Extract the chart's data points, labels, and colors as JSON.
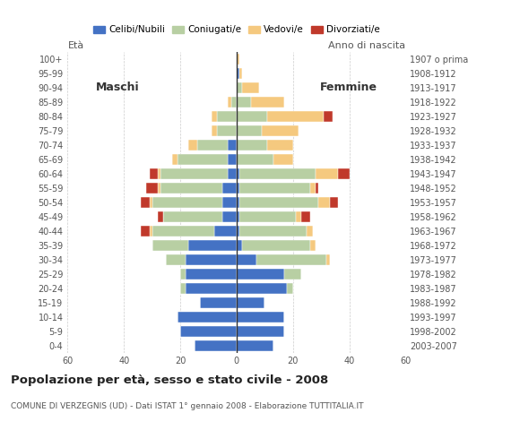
{
  "age_groups": [
    "0-4",
    "5-9",
    "10-14",
    "15-19",
    "20-24",
    "25-29",
    "30-34",
    "35-39",
    "40-44",
    "45-49",
    "50-54",
    "55-59",
    "60-64",
    "65-69",
    "70-74",
    "75-79",
    "80-84",
    "85-89",
    "90-94",
    "95-99",
    "100+"
  ],
  "birth_years": [
    "2003-2007",
    "1998-2002",
    "1993-1997",
    "1988-1992",
    "1983-1987",
    "1978-1982",
    "1973-1977",
    "1968-1972",
    "1963-1967",
    "1958-1962",
    "1953-1957",
    "1948-1952",
    "1943-1947",
    "1938-1942",
    "1933-1937",
    "1928-1932",
    "1923-1927",
    "1918-1922",
    "1913-1917",
    "1908-1912",
    "1907 o prima"
  ],
  "colors": {
    "celibe": "#4472c4",
    "coniugato": "#b8cfa3",
    "vedovo": "#f5c97f",
    "divorziato": "#c0392b"
  },
  "males": {
    "celibe": [
      15,
      20,
      21,
      13,
      18,
      18,
      18,
      17,
      8,
      5,
      5,
      5,
      3,
      3,
      3,
      0,
      0,
      0,
      0,
      0,
      0
    ],
    "coniugato": [
      0,
      0,
      0,
      0,
      2,
      2,
      7,
      13,
      22,
      21,
      25,
      22,
      24,
      18,
      11,
      7,
      7,
      2,
      0,
      0,
      0
    ],
    "vedovo": [
      0,
      0,
      0,
      0,
      0,
      0,
      0,
      0,
      1,
      0,
      1,
      1,
      1,
      2,
      3,
      2,
      2,
      1,
      0,
      0,
      0
    ],
    "divorziato": [
      0,
      0,
      0,
      0,
      0,
      0,
      0,
      0,
      3,
      2,
      3,
      4,
      3,
      0,
      0,
      0,
      0,
      0,
      0,
      0,
      0
    ]
  },
  "females": {
    "celibe": [
      13,
      17,
      17,
      10,
      18,
      17,
      7,
      2,
      1,
      1,
      1,
      1,
      1,
      0,
      0,
      0,
      0,
      0,
      0,
      1,
      0
    ],
    "coniugato": [
      0,
      0,
      0,
      0,
      2,
      6,
      25,
      24,
      24,
      20,
      28,
      25,
      27,
      13,
      11,
      9,
      11,
      5,
      2,
      0,
      0
    ],
    "vedovo": [
      0,
      0,
      0,
      0,
      0,
      0,
      1,
      2,
      2,
      2,
      4,
      2,
      8,
      7,
      9,
      13,
      20,
      12,
      6,
      1,
      1
    ],
    "divorziato": [
      0,
      0,
      0,
      0,
      0,
      0,
      0,
      0,
      0,
      3,
      3,
      1,
      4,
      0,
      0,
      0,
      3,
      0,
      0,
      0,
      0
    ]
  },
  "title": "Popolazione per età, sesso e stato civile - 2008",
  "subtitle": "COMUNE DI VERZEGNIS (UD) - Dati ISTAT 1° gennaio 2008 - Elaborazione TUTTITALIA.IT",
  "eta_label": "Età",
  "anno_nascita_label": "Anno di nascita",
  "label_maschi": "Maschi",
  "label_femmine": "Femmine",
  "legend_labels": [
    "Celibi/Nubili",
    "Coniugati/e",
    "Vedovi/e",
    "Divorziati/e"
  ],
  "xlim": 60,
  "background_color": "#ffffff",
  "bar_height": 0.75
}
